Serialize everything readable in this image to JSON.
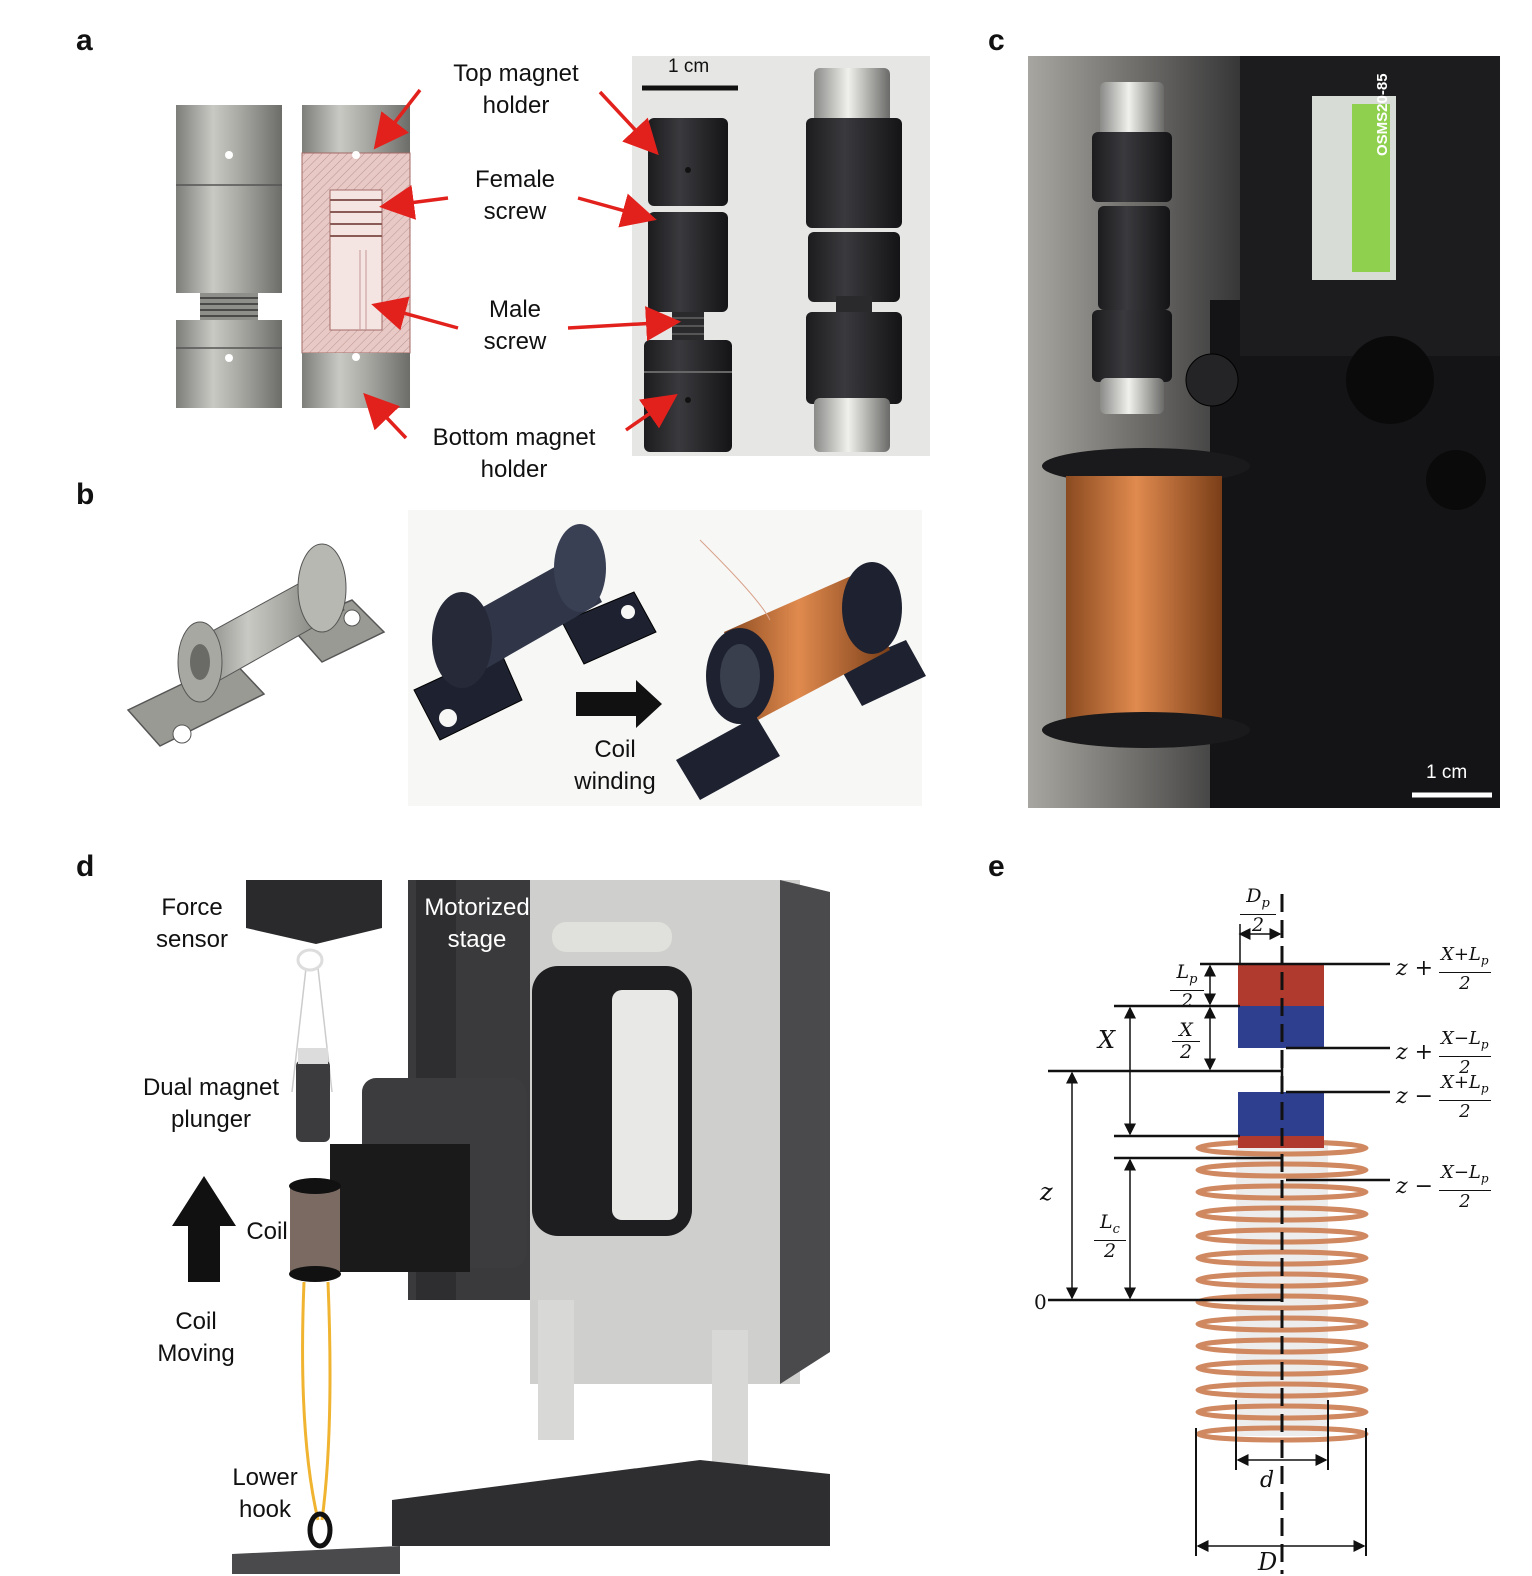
{
  "panels": {
    "a": "a",
    "b": "b",
    "c": "c",
    "d": "d",
    "e": "e"
  },
  "panel_a": {
    "scale_bar": "1 cm",
    "labels": {
      "top_holder_1": "Top magnet",
      "top_holder_2": "holder",
      "female_1": "Female",
      "female_2": "screw",
      "male_1": "Male",
      "male_2": "screw",
      "bottom_holder_1": "Bottom magnet",
      "bottom_holder_2": "holder"
    }
  },
  "panel_b": {
    "coil_winding_1": "Coil",
    "coil_winding_2": "winding"
  },
  "panel_c": {
    "scale_bar": "1 cm",
    "motor_label": "OSMS20-85"
  },
  "panel_d": {
    "force_sensor_1": "Force",
    "force_sensor_2": "sensor",
    "stage_1": "Motorized",
    "stage_2": "stage",
    "plunger_1": "Dual magnet",
    "plunger_2": "plunger",
    "coil": "Coil",
    "coil_moving_1": "Coil",
    "coil_moving_2": "Moving",
    "lower_hook_1": "Lower",
    "lower_hook_2": "hook"
  },
  "panel_e": {
    "dp_num": "D",
    "dp_sub": "p",
    "half": "2",
    "lp_num": "L",
    "lp_sub": "p",
    "x_half_num": "X",
    "x_label": "X",
    "z_label": "z",
    "zero_label": "0",
    "lc_num": "L",
    "lc_sub": "c",
    "d_small": "d",
    "d_big": "D",
    "eq1_prefix": "z +",
    "eq1_num": "X+L",
    "eq1_sub": "p",
    "eq2_prefix": "z +",
    "eq2_num": "X−L",
    "eq2_sub": "p",
    "eq3_prefix": "z −",
    "eq3_num": "X+L",
    "eq3_sub": "p",
    "eq4_prefix": "z −",
    "eq4_num": "X−L",
    "eq4_sub": "p"
  },
  "colors": {
    "magnet_red": "#b03a2e",
    "magnet_blue": "#2e3f8f",
    "copper": "#c8703f",
    "arrow_red": "#e3211c"
  }
}
